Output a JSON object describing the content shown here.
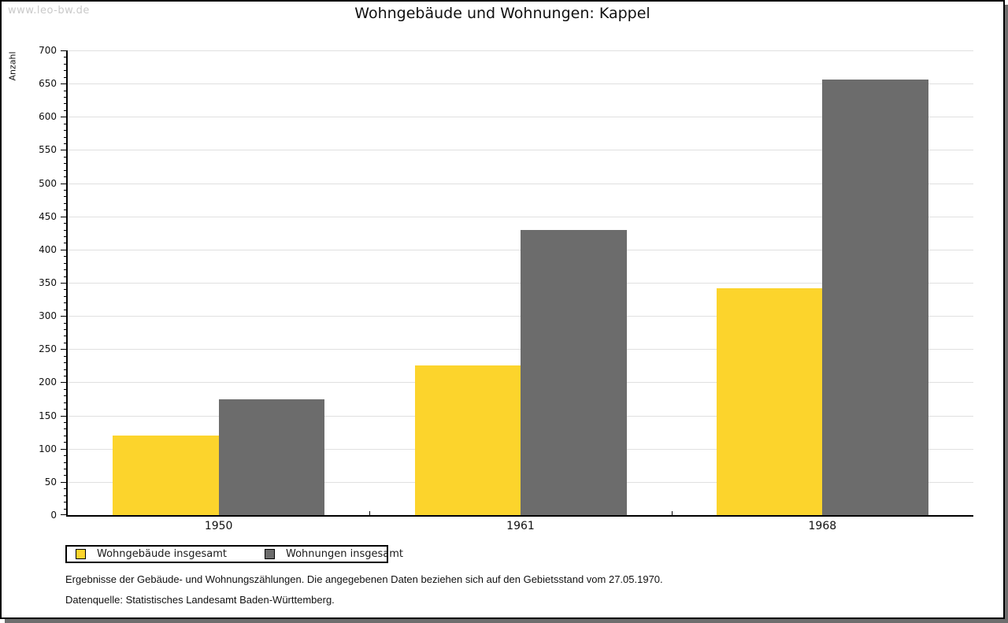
{
  "watermark": "www.leo-bw.de",
  "title": "Wohngebäude und Wohnungen: Kappel",
  "chart_data": {
    "type": "bar",
    "title": "Wohngebäude und Wohnungen: Kappel",
    "categories": [
      "1950",
      "1961",
      "1968"
    ],
    "series": [
      {
        "name": "Wohngebäude insgesamt",
        "color": "#FCD42C",
        "values": [
          120,
          225,
          342
        ]
      },
      {
        "name": "Wohnungen insgesamt",
        "color": "#6C6C6C",
        "values": [
          175,
          429,
          656
        ]
      }
    ],
    "xlabel": "",
    "ylabel": "Anzahl",
    "ylim": [
      0,
      700
    ],
    "ytick_step": 50,
    "minor_tick_step": 10,
    "grid": true,
    "legend_position": "bottom-left"
  },
  "footer": {
    "line1": "Ergebnisse der Gebäude- und Wohnungszählungen. Die angegebenen Daten beziehen sich auf den Gebietsstand vom 27.05.1970.",
    "line2": "Datenquelle: Statistisches Landesamt Baden-Württemberg."
  },
  "colors": {
    "series1": "#FCD42C",
    "series2": "#6C6C6C",
    "gridline": "#e0e0e0",
    "axis": "#000000",
    "shadow": "#6e6e6e",
    "watermark": "#c9c9c9",
    "text": "#111111",
    "background": "#ffffff"
  }
}
